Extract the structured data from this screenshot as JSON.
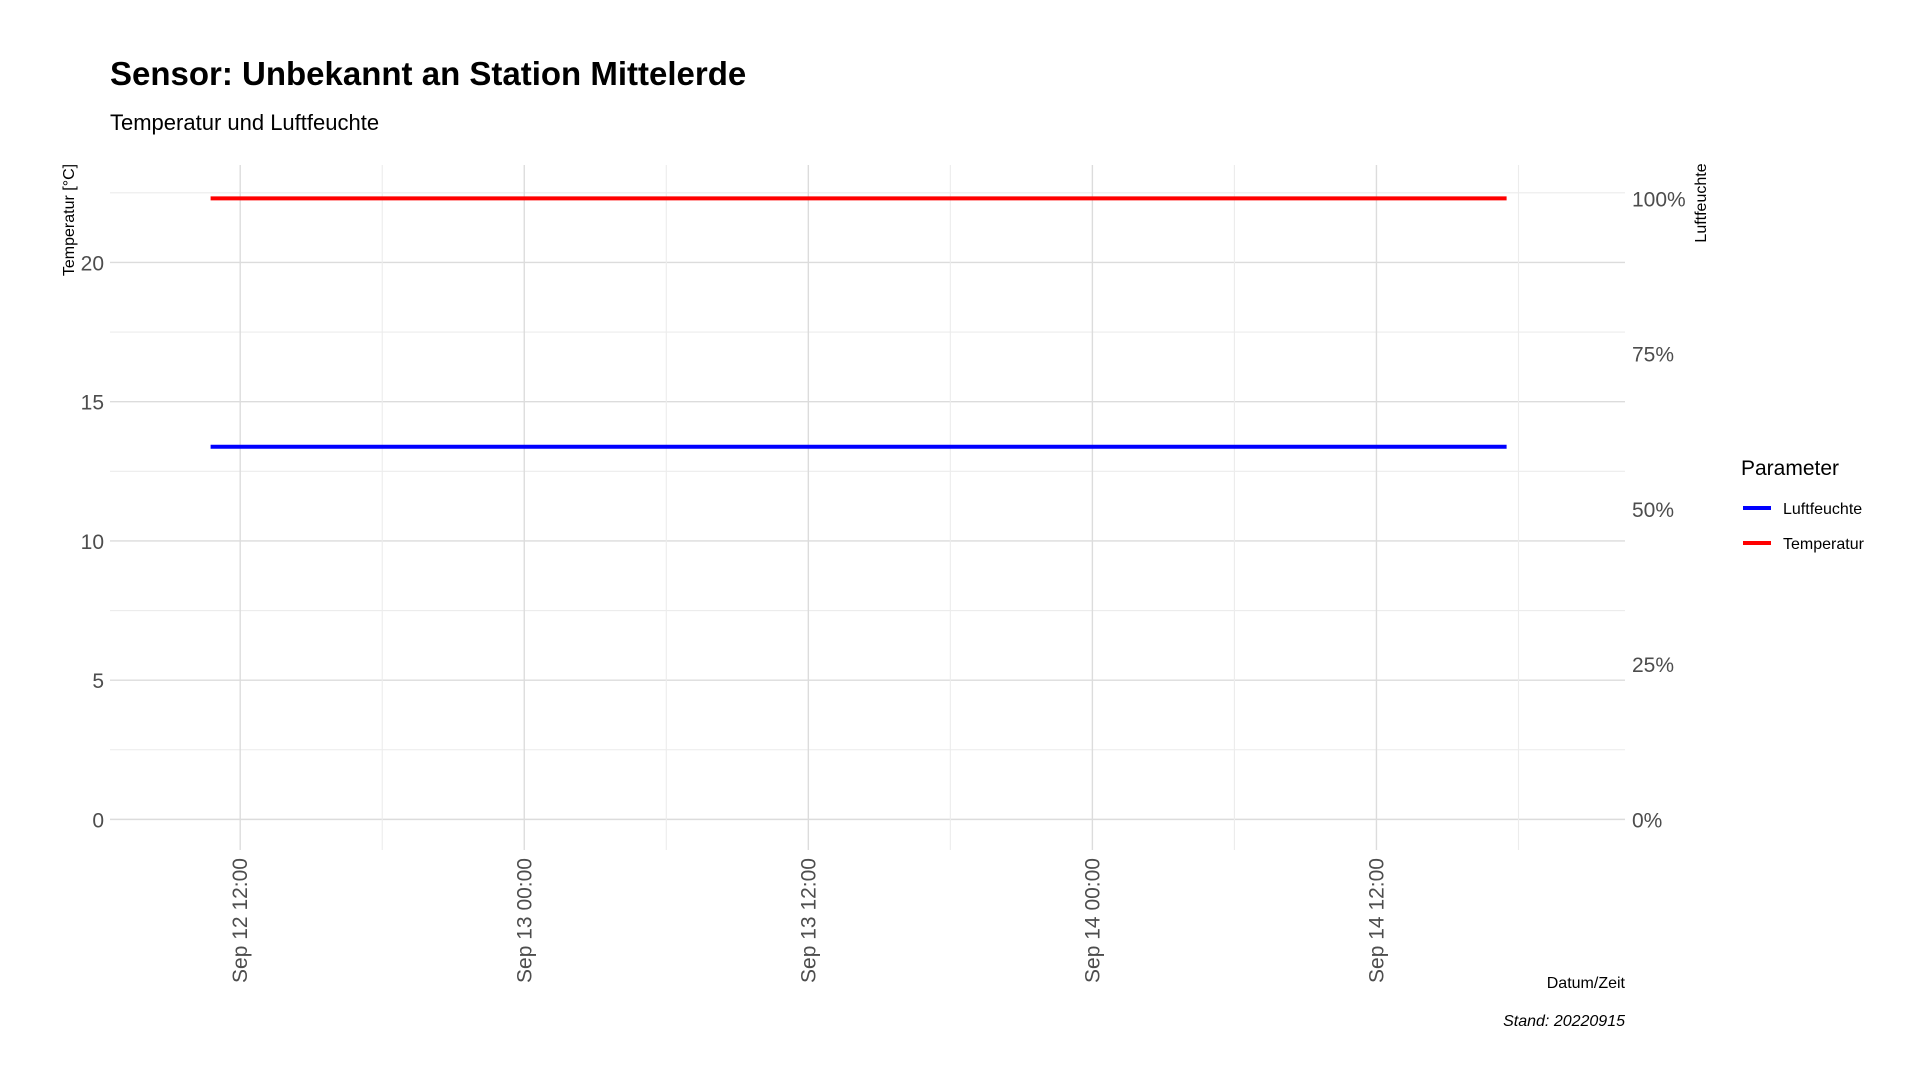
{
  "chart_data": {
    "type": "line",
    "title": "Sensor: Unbekannt an Station Mittelerde",
    "subtitle": "Temperatur und Luftfeuchte",
    "xlabel": "Datum/Zeit",
    "ylabel": "Temperatur [°C]",
    "y2label": "Luftfeuchte",
    "caption": "Stand: 20220915",
    "x_ticks": [
      "Sep 12 12:00",
      "Sep 13 00:00",
      "Sep 13 12:00",
      "Sep 14 00:00",
      "Sep 14 12:00"
    ],
    "xlim": [
      "2022-09-12 06:30",
      "2022-09-14 22:30"
    ],
    "y_ticks": [
      "0",
      "5",
      "10",
      "15",
      "20"
    ],
    "ylim": [
      -1.1,
      23.5
    ],
    "y2_ticks": [
      "0%",
      "25%",
      "50%",
      "75%",
      "100%"
    ],
    "y2lim": [
      0,
      1
    ],
    "grid": true,
    "legend": {
      "title": "Parameter",
      "position": "right",
      "entries": [
        "Luftfeuchte",
        "Temperatur"
      ]
    },
    "series": [
      {
        "name": "Luftfeuchte",
        "color": "#0000ff",
        "axis": "right",
        "x": [
          "2022-09-12 10:45",
          "2022-09-14 17:30"
        ],
        "values": [
          0.6,
          0.6
        ]
      },
      {
        "name": "Temperatur",
        "color": "#ff0000",
        "axis": "left",
        "x": [
          "2022-09-12 10:45",
          "2022-09-14 17:30"
        ],
        "values": [
          22.3,
          22.3
        ]
      }
    ]
  }
}
